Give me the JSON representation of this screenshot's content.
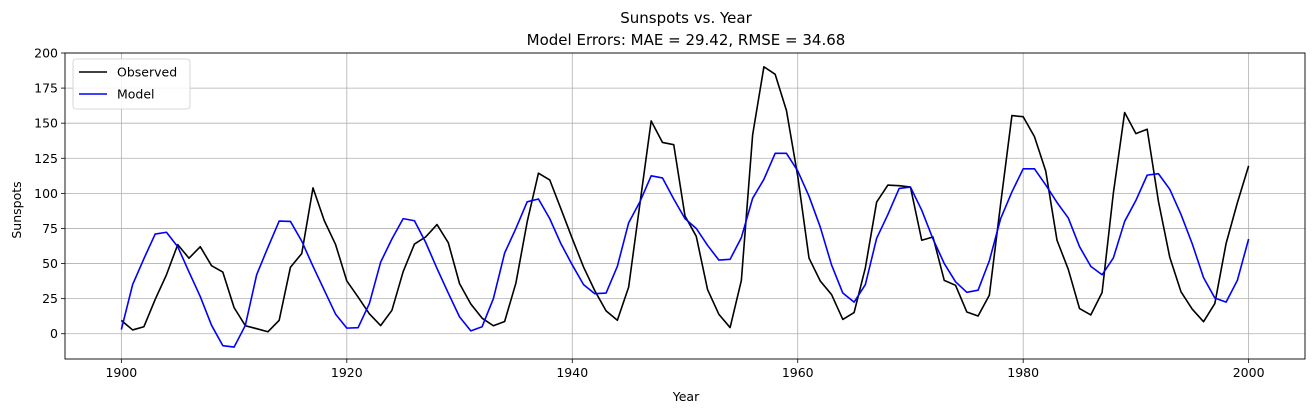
{
  "chart_data": {
    "type": "line",
    "title": "Sunspots vs. Year",
    "subtitle": "Model Errors: MAE = 29.42, RMSE = 34.68",
    "xlabel": "Year",
    "ylabel": "Sunspots",
    "xlim": [
      1895,
      2005
    ],
    "ylim": [
      -18,
      200
    ],
    "xticks": [
      1900,
      1920,
      1940,
      1960,
      1980,
      2000
    ],
    "yticks": [
      0,
      25,
      50,
      75,
      100,
      125,
      150,
      175,
      200
    ],
    "grid": true,
    "legend_position": "top-left",
    "x": [
      1900,
      1901,
      1902,
      1903,
      1904,
      1905,
      1906,
      1907,
      1908,
      1909,
      1910,
      1911,
      1912,
      1913,
      1914,
      1915,
      1916,
      1917,
      1918,
      1919,
      1920,
      1921,
      1922,
      1923,
      1924,
      1925,
      1926,
      1927,
      1928,
      1929,
      1930,
      1931,
      1932,
      1933,
      1934,
      1935,
      1936,
      1937,
      1938,
      1939,
      1940,
      1941,
      1942,
      1943,
      1944,
      1945,
      1946,
      1947,
      1948,
      1949,
      1950,
      1951,
      1952,
      1953,
      1954,
      1955,
      1956,
      1957,
      1958,
      1959,
      1960,
      1961,
      1962,
      1963,
      1964,
      1965,
      1966,
      1967,
      1968,
      1969,
      1970,
      1971,
      1972,
      1973,
      1974,
      1975,
      1976,
      1977,
      1978,
      1979,
      1980,
      1981,
      1982,
      1983,
      1984,
      1985,
      1986,
      1987,
      1988,
      1989,
      1990,
      1991,
      1992,
      1993,
      1994,
      1995,
      1996,
      1997,
      1998,
      1999,
      2000
    ],
    "series": [
      {
        "name": "Observed",
        "color": "#000000",
        "values": [
          9.5,
          2.7,
          5.0,
          24.4,
          42.0,
          63.5,
          53.8,
          62.0,
          48.5,
          43.9,
          18.6,
          5.7,
          3.6,
          1.4,
          9.6,
          47.4,
          57.1,
          103.9,
          80.6,
          63.6,
          37.6,
          26.1,
          14.2,
          5.8,
          16.7,
          44.3,
          63.9,
          69.0,
          77.8,
          64.9,
          35.7,
          21.2,
          11.1,
          5.7,
          8.7,
          36.1,
          79.7,
          114.4,
          109.6,
          88.8,
          67.8,
          47.5,
          30.6,
          16.3,
          9.6,
          33.2,
          92.6,
          151.6,
          136.3,
          134.7,
          83.9,
          69.4,
          31.5,
          13.9,
          4.4,
          38.0,
          141.7,
          190.2,
          184.8,
          159.0,
          112.3,
          53.9,
          37.6,
          27.9,
          10.2,
          15.1,
          47.0,
          93.8,
          105.9,
          105.5,
          104.5,
          66.6,
          68.9,
          38.0,
          34.5,
          15.5,
          12.6,
          27.5,
          92.5,
          155.4,
          154.6,
          140.4,
          115.9,
          66.6,
          45.9,
          17.9,
          13.4,
          29.4,
          100.2,
          157.6,
          142.6,
          145.7,
          94.3,
          54.6,
          29.9,
          17.5,
          8.6,
          21.5,
          64.3,
          93.3,
          119.6
        ]
      },
      {
        "name": "Model",
        "color": "#0000ff",
        "values": [
          3.0,
          35.0,
          53.5,
          71.0,
          72.3,
          62.0,
          44.0,
          26.5,
          6.0,
          -8.5,
          -9.5,
          6.0,
          42.0,
          61.5,
          80.3,
          80.0,
          66.0,
          48.0,
          31.0,
          14.0,
          4.0,
          4.3,
          21.5,
          51.0,
          67.5,
          82.0,
          80.5,
          65.0,
          46.5,
          29.0,
          12.0,
          2.0,
          5.0,
          25.0,
          57.5,
          75.0,
          94.0,
          96.0,
          82.0,
          64.0,
          49.0,
          35.0,
          28.5,
          29.0,
          48.0,
          79.0,
          94.0,
          112.5,
          111.0,
          96.0,
          82.0,
          75.0,
          63.0,
          52.5,
          53.0,
          68.5,
          96.5,
          110.0,
          128.5,
          128.5,
          116.0,
          98.0,
          76.0,
          49.0,
          29.0,
          22.5,
          35.0,
          68.0,
          85.0,
          103.5,
          104.5,
          88.0,
          67.5,
          50.0,
          37.0,
          29.5,
          31.0,
          52.0,
          82.0,
          101.0,
          117.5,
          117.5,
          106.0,
          93.5,
          82.5,
          62.0,
          48.0,
          42.0,
          54.0,
          80.0,
          95.0,
          113.0,
          114.0,
          103.0,
          85.0,
          64.0,
          40.0,
          25.5,
          22.5,
          38.0,
          67.5
        ]
      }
    ]
  }
}
